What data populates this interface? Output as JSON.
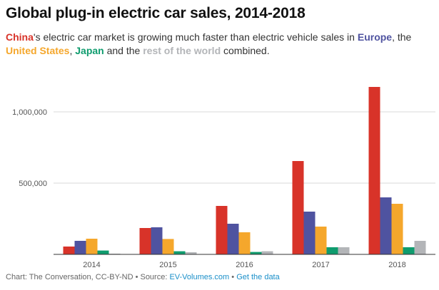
{
  "subtitle": {
    "china": "China",
    "part1": "'s electric car market is growing much faster than electric vehicle sales in ",
    "europe": "Europe",
    "comma1": ", the",
    "us": "United States",
    "comma2": ", ",
    "japan": "Japan",
    "and": " and the ",
    "rest": "rest of the world",
    "combined": " combined."
  },
  "footer": {
    "credit": "Chart: The Conversation, CC-BY-ND",
    "sep1": " • Source: ",
    "source": "EV-Volumes.com",
    "sep2": " • ",
    "get_data": "Get the data"
  },
  "colors": {
    "china": "#d83329",
    "europe": "#4f53a0",
    "us": "#f5a72c",
    "japan": "#0f9c6e",
    "rest": "#b3b5b8",
    "link": "#1a8fc9"
  },
  "chart_data": {
    "type": "bar",
    "title": "Global plug-in electric car sales, 2014-2018",
    "xlabel": "",
    "ylabel": "",
    "ylim": [
      0,
      1250000
    ],
    "yticks": [
      500000,
      1000000
    ],
    "ytick_labels": [
      "500,000",
      "1,000,000"
    ],
    "categories": [
      "2014",
      "2015",
      "2016",
      "2017",
      "2018"
    ],
    "series": [
      {
        "name": "China",
        "color": "#d83329",
        "values": [
          55000,
          185000,
          340000,
          655000,
          1175000
        ]
      },
      {
        "name": "Europe",
        "color": "#4f53a0",
        "values": [
          95000,
          190000,
          215000,
          300000,
          400000
        ]
      },
      {
        "name": "United States",
        "color": "#f5a72c",
        "values": [
          110000,
          108000,
          155000,
          195000,
          355000
        ]
      },
      {
        "name": "Japan",
        "color": "#0f9c6e",
        "values": [
          27000,
          22000,
          17000,
          50000,
          50000
        ]
      },
      {
        "name": "Rest of the world",
        "color": "#b3b5b8",
        "values": [
          5000,
          15000,
          22000,
          50000,
          95000
        ]
      }
    ]
  }
}
